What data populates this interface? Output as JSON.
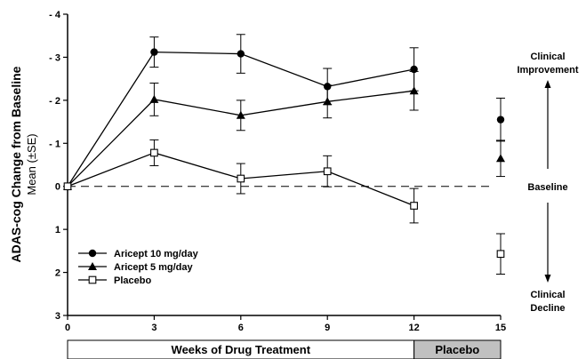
{
  "chart_data": {
    "type": "line",
    "ylabel": "ADAS-cog Change from Baseline",
    "ylabel_sub": "Mean (±SE)",
    "y_reversed": true,
    "ylim": [
      -4,
      3
    ],
    "y_ticks": [
      {
        "value": -4,
        "label": "- 4"
      },
      {
        "value": -3,
        "label": "- 3"
      },
      {
        "value": -2,
        "label": "- 2"
      },
      {
        "value": -1,
        "label": "- 1"
      },
      {
        "value": 0,
        "label": "0"
      },
      {
        "value": 1,
        "label": "1"
      },
      {
        "value": 2,
        "label": "2"
      },
      {
        "value": 3,
        "label": "3"
      }
    ],
    "xlim": [
      0,
      15
    ],
    "x_ticks": [
      0,
      3,
      6,
      9,
      12,
      15
    ],
    "baseline_dashed": true,
    "series": [
      {
        "name": "Aricept 10 mg/day",
        "marker": "circle-filled",
        "points": [
          {
            "x": 0,
            "y": 0,
            "err": 0
          },
          {
            "x": 3,
            "y": -3.12,
            "err": 0.35
          },
          {
            "x": 6,
            "y": -3.08,
            "err": 0.45
          },
          {
            "x": 9,
            "y": -2.32,
            "err": 0.42
          },
          {
            "x": 12,
            "y": -2.72,
            "err": 0.5
          }
        ],
        "extra_points": [
          {
            "x": 15,
            "y": -1.55,
            "err": 0.5
          }
        ]
      },
      {
        "name": "Aricept 5 mg/day",
        "marker": "triangle-filled",
        "points": [
          {
            "x": 0,
            "y": 0,
            "err": 0
          },
          {
            "x": 3,
            "y": -2.02,
            "err": 0.38
          },
          {
            "x": 6,
            "y": -1.65,
            "err": 0.35
          },
          {
            "x": 9,
            "y": -1.97,
            "err": 0.38
          },
          {
            "x": 12,
            "y": -2.22,
            "err": 0.45
          }
        ],
        "extra_points": [
          {
            "x": 15,
            "y": -0.65,
            "err": 0.42
          }
        ]
      },
      {
        "name": "Placebo",
        "marker": "square-open",
        "points": [
          {
            "x": 0,
            "y": 0,
            "err": 0
          },
          {
            "x": 3,
            "y": -0.78,
            "err": 0.3
          },
          {
            "x": 6,
            "y": -0.18,
            "err": 0.35
          },
          {
            "x": 9,
            "y": -0.35,
            "err": 0.36
          },
          {
            "x": 12,
            "y": 0.45,
            "err": 0.4
          }
        ],
        "extra_points": [
          {
            "x": 15,
            "y": 1.57,
            "err": 0.47
          }
        ]
      }
    ],
    "annotations": {
      "improvement": [
        "Clinical",
        "Improvement"
      ],
      "baseline": "Baseline",
      "decline": [
        "Clinical",
        "Decline"
      ]
    },
    "bands": [
      {
        "label": "Weeks of Drug Treatment",
        "x_start": 0,
        "x_end": 12,
        "fill": "#ffffff"
      },
      {
        "label": "Placebo",
        "x_start": 12,
        "x_end": 15,
        "fill": "#c0c0c0"
      }
    ]
  }
}
